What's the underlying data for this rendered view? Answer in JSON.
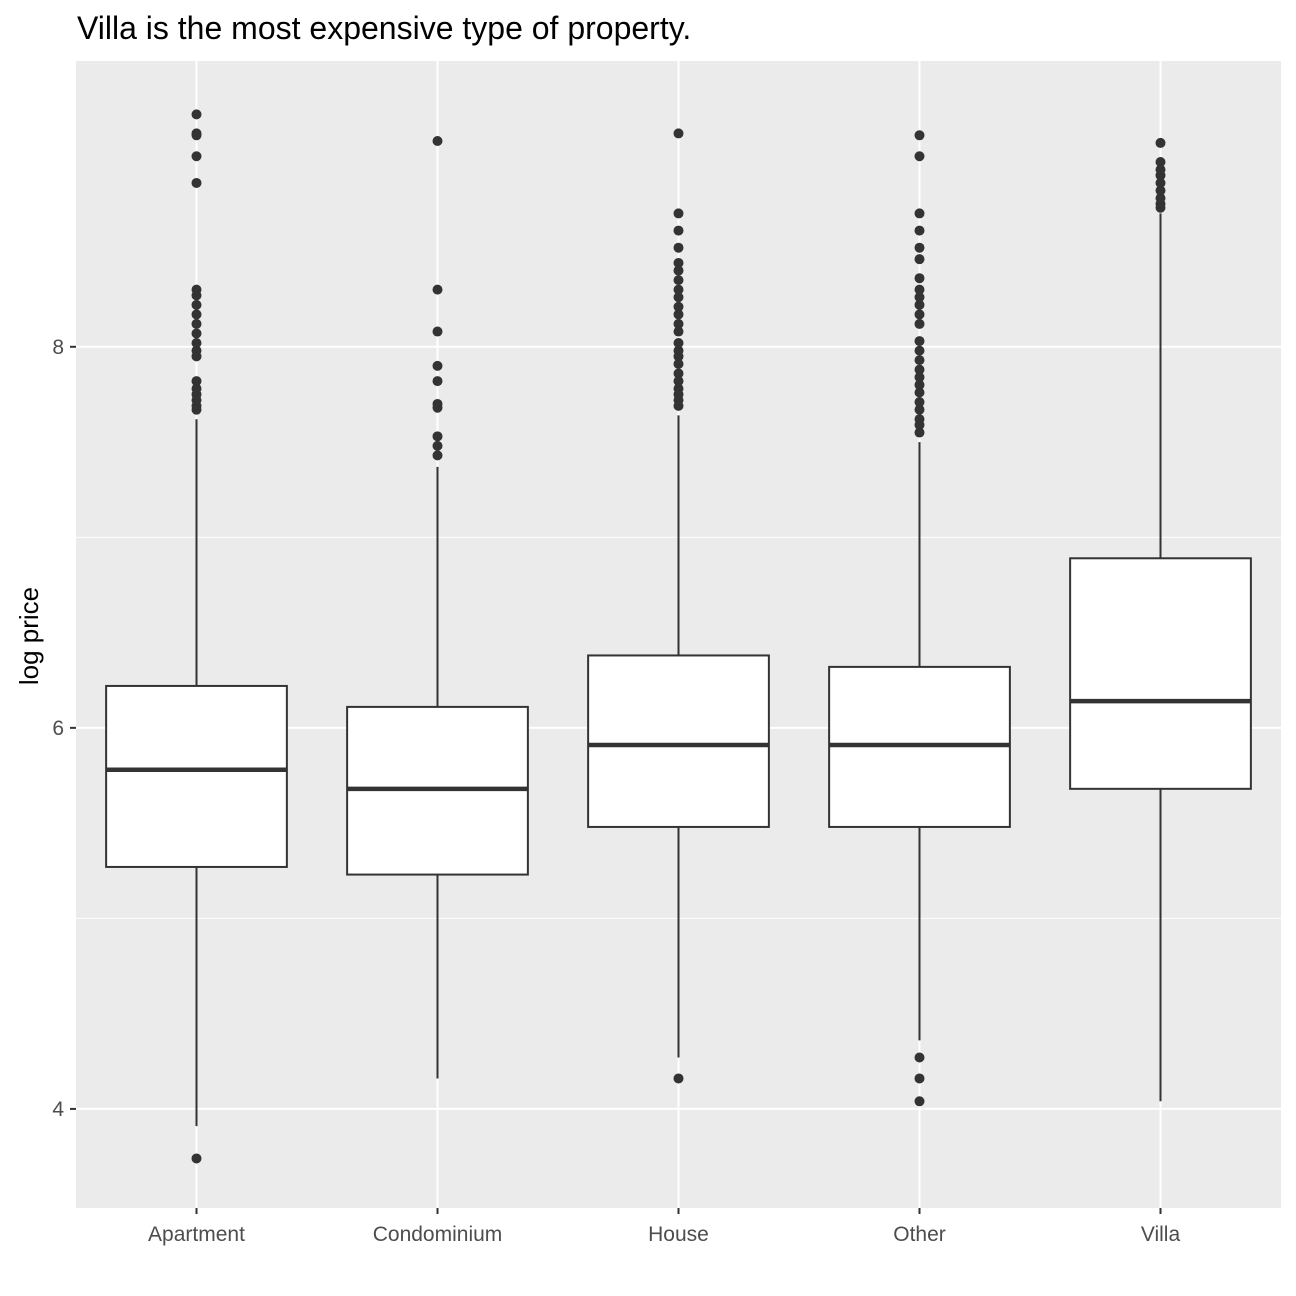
{
  "chart_data": {
    "type": "boxplot",
    "title": "Villa is the most expensive type of property.",
    "xlabel": "",
    "ylabel": "log price",
    "ylim": [
      3.48,
      9.5
    ],
    "yticks": [
      4,
      6,
      8
    ],
    "grid": true,
    "categories": [
      "Apartment",
      "Condominium",
      "House",
      "Other",
      "Villa"
    ],
    "boxes": [
      {
        "category": "Apartment",
        "lower_whisker": 3.91,
        "q1": 5.27,
        "median": 5.78,
        "q3": 6.22,
        "upper_whisker": 7.62,
        "outliers": [
          3.74,
          7.67,
          7.69,
          7.72,
          7.75,
          7.78,
          7.82,
          7.95,
          7.98,
          8.02,
          8.07,
          8.12,
          8.17,
          8.22,
          8.27,
          8.3,
          8.86,
          9.0,
          9.11,
          9.12,
          9.22
        ]
      },
      {
        "category": "Condominium",
        "lower_whisker": 4.16,
        "q1": 5.23,
        "median": 5.68,
        "q3": 6.11,
        "upper_whisker": 7.37,
        "outliers": [
          7.43,
          7.48,
          7.53,
          7.68,
          7.7,
          7.82,
          7.9,
          8.08,
          8.3,
          9.08
        ]
      },
      {
        "category": "House",
        "lower_whisker": 4.27,
        "q1": 5.48,
        "median": 5.91,
        "q3": 6.38,
        "upper_whisker": 7.64,
        "outliers": [
          4.16,
          7.69,
          7.72,
          7.75,
          7.78,
          7.82,
          7.86,
          7.91,
          7.95,
          7.98,
          8.02,
          8.08,
          8.12,
          8.17,
          8.21,
          8.26,
          8.3,
          8.35,
          8.4,
          8.44,
          8.52,
          8.61,
          8.7,
          9.12
        ]
      },
      {
        "category": "Other",
        "lower_whisker": 4.36,
        "q1": 5.48,
        "median": 5.91,
        "q3": 6.32,
        "upper_whisker": 7.5,
        "outliers": [
          4.04,
          4.16,
          4.27,
          7.55,
          7.59,
          7.62,
          7.67,
          7.71,
          7.76,
          7.8,
          7.84,
          7.88,
          7.93,
          7.98,
          8.03,
          8.12,
          8.17,
          8.22,
          8.26,
          8.3,
          8.36,
          8.46,
          8.52,
          8.61,
          8.7,
          9.0,
          9.11
        ]
      },
      {
        "category": "Villa",
        "lower_whisker": 4.04,
        "q1": 5.68,
        "median": 6.14,
        "q3": 6.89,
        "upper_whisker": 8.7,
        "outliers": [
          8.73,
          8.75,
          8.78,
          8.82,
          8.86,
          8.9,
          8.93,
          8.97,
          9.07
        ]
      }
    ],
    "colors": {
      "panel_bg": "#EBEBEB",
      "grid_major": "#FFFFFF",
      "box_fill": "#FFFFFF",
      "box_line": "#333333",
      "axis_text": "#4D4D4D",
      "tick": "#333333"
    }
  }
}
